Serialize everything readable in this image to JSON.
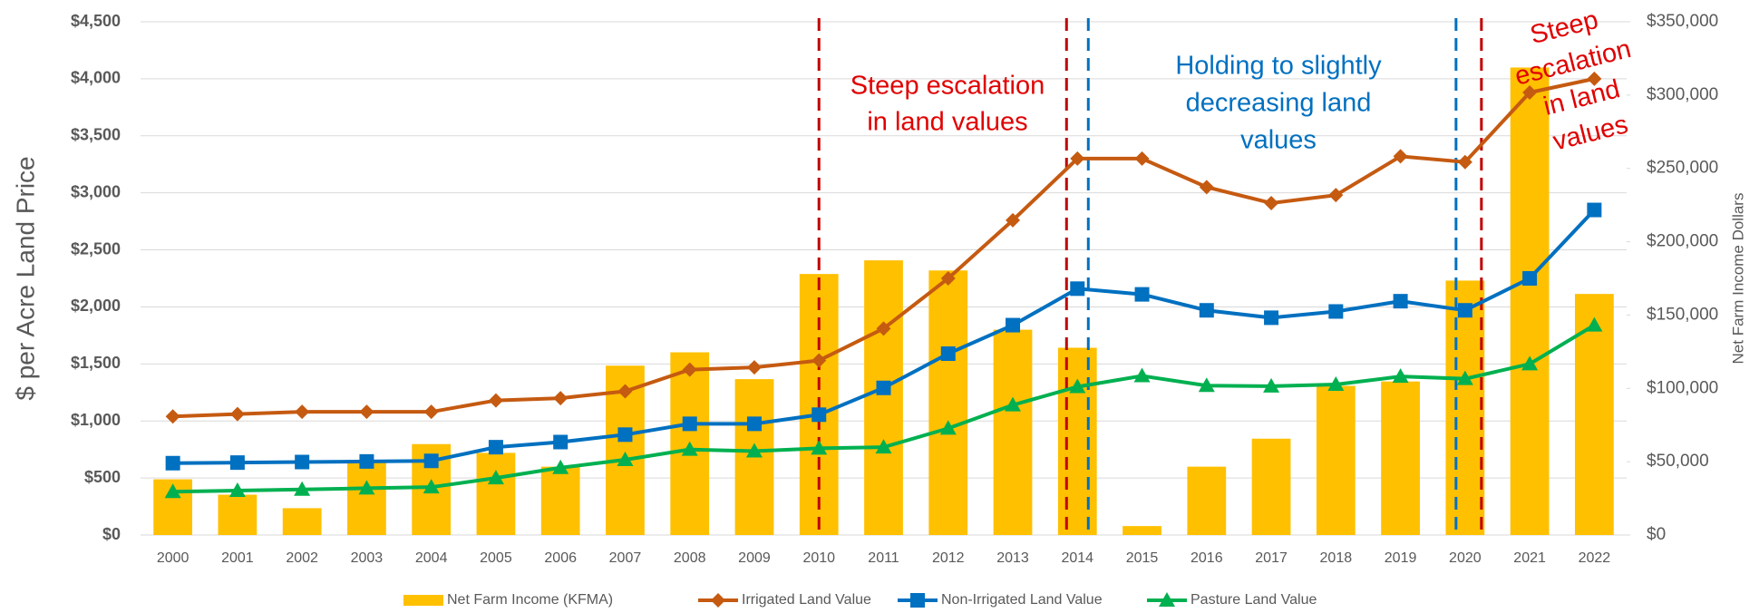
{
  "chart_data": {
    "type": "combo",
    "y_axis_label": "$ per Acre Land Price",
    "y2_axis_label": "Net Farm Income Dollars",
    "categories": [
      "2000",
      "2001",
      "2002",
      "2003",
      "2004",
      "2005",
      "2006",
      "2007",
      "2008",
      "2009",
      "2010",
      "2011",
      "2012",
      "2013",
      "2014",
      "2015",
      "2016",
      "2017",
      "2018",
      "2019",
      "2020",
      "2021",
      "2022"
    ],
    "series": [
      {
        "name": "Net Farm Income (KFMA)",
        "type": "bar",
        "axis": "y2",
        "color": "#ffc000",
        "values": [
          38000,
          27500,
          18300,
          50000,
          62000,
          56000,
          46600,
          115500,
          124600,
          106300,
          178000,
          187300,
          180400,
          140000,
          127700,
          6100,
          46600,
          65700,
          101700,
          104700,
          173500,
          318800,
          164400
        ]
      },
      {
        "name": "Irrigated Land Value",
        "type": "line",
        "marker": "diamond",
        "color": "#c55a11",
        "values": [
          1040,
          1060,
          1080,
          1080,
          1080,
          1180,
          1200,
          1260,
          1450,
          1470,
          1530,
          1810,
          2250,
          2760,
          3300,
          3300,
          3050,
          2910,
          2980,
          3320,
          3270,
          3880,
          4000
        ]
      },
      {
        "name": "Non-Irrigated Land Value",
        "type": "line",
        "marker": "square",
        "color": "#0070c0",
        "values": [
          630,
          635,
          640,
          645,
          650,
          770,
          815,
          880,
          975,
          975,
          1055,
          1290,
          1590,
          1840,
          2160,
          2110,
          1970,
          1905,
          1960,
          2050,
          1970,
          2250,
          2850
        ]
      },
      {
        "name": "Pasture Land Value",
        "type": "line",
        "marker": "triangle",
        "color": "#00b050",
        "values": [
          380,
          390,
          400,
          410,
          420,
          500,
          590,
          660,
          750,
          735,
          760,
          770,
          935,
          1140,
          1300,
          1395,
          1310,
          1305,
          1320,
          1390,
          1370,
          1500,
          1840
        ]
      }
    ],
    "ylim": [
      0,
      4500
    ],
    "yticks": [
      {
        "value": 0,
        "label": "$0"
      },
      {
        "value": 500,
        "label": "$500"
      },
      {
        "value": 1000,
        "label": "$1,000"
      },
      {
        "value": 1500,
        "label": "$1,500"
      },
      {
        "value": 2000,
        "label": "$2,000"
      },
      {
        "value": 2500,
        "label": "$2,500"
      },
      {
        "value": 3000,
        "label": "$3,000"
      },
      {
        "value": 3500,
        "label": "$3,500"
      },
      {
        "value": 4000,
        "label": "$4,000"
      },
      {
        "value": 4500,
        "label": "$4,500"
      }
    ],
    "y2lim": [
      0,
      350000
    ],
    "y2ticks": [
      {
        "value": 0,
        "label": "$0"
      },
      {
        "value": 50000,
        "label": "$50,000"
      },
      {
        "value": 100000,
        "label": "$100,000"
      },
      {
        "value": 150000,
        "label": "$150,000"
      },
      {
        "value": 200000,
        "label": "$200,000"
      },
      {
        "value": 250000,
        "label": "$250,000"
      },
      {
        "value": 300000,
        "label": "$300,000"
      },
      {
        "value": 350000,
        "label": "$350,000"
      }
    ],
    "grid": true,
    "legend": "bottom",
    "reference_lines": [
      {
        "category": "2010",
        "color": "#c00000"
      },
      {
        "category": "2014",
        "color": "#c00000"
      },
      {
        "category": "2014",
        "color": "#0070c0"
      },
      {
        "category": "2020",
        "color": "#0070c0"
      },
      {
        "category": "2020",
        "color": "#c00000"
      }
    ],
    "annotations": [
      {
        "lines": [
          "Steep escalation",
          "in land values"
        ],
        "color": "#e00000"
      },
      {
        "lines": [
          "Holding to slightly",
          "decreasing land",
          "values"
        ],
        "color": "#0070c0"
      },
      {
        "lines": [
          "Steep",
          "escalation",
          "in land",
          "values"
        ],
        "color": "#e00000"
      }
    ]
  }
}
